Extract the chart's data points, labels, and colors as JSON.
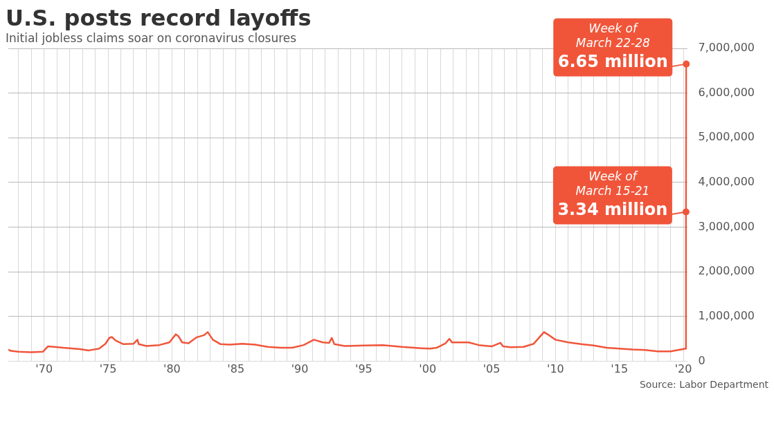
{
  "chart_data": {
    "type": "line",
    "title": "U.S. posts record layoffs",
    "subtitle": "Initial jobless claims soar on coronavirus closures",
    "annotations": [
      "Source: Labor Department",
      {
        "text": "Week of\nMarch 22-28\n6.65 million",
        "x": 2020.23,
        "y": 6650000
      },
      {
        "text": "Week of\nMarch 15-21\n3.34 million",
        "x": 2020.21,
        "y": 3340000
      }
    ],
    "series": [
      {
        "color": "#f0553a",
        "x": [
          1967.2,
          1967.4,
          1968,
          1969,
          1969.9,
          1970.3,
          1970.8,
          1971.5,
          1972,
          1972.8,
          1973.5,
          1974.3,
          1974.8,
          1975.1,
          1975.3,
          1975.6,
          1976.2,
          1977,
          1977.3,
          1977.4,
          1978,
          1979,
          1979.8,
          1980.3,
          1980.5,
          1980.8,
          1981.3,
          1981.9,
          1982.5,
          1982.8,
          1983.2,
          1983.8,
          1984.5,
          1985.5,
          1986.5,
          1987.5,
          1988.5,
          1989.4,
          1990.3,
          1991.1,
          1991.8,
          1992.3,
          1992.5,
          1992.7,
          1993.5,
          1995,
          1996.5,
          1998,
          1999.5,
          2000.2,
          2000.7,
          2001.4,
          2001.7,
          2001.9,
          2003.2,
          2004,
          2005,
          2005.7,
          2005.9,
          2006.5,
          2007.5,
          2008.3,
          2009.1,
          2009.5,
          2010,
          2011,
          2012,
          2013,
          2014,
          2015,
          2016,
          2017,
          2018,
          2019,
          2020.19,
          2020.21,
          2020.23
        ],
        "values": [
          260000,
          230000,
          210000,
          200000,
          210000,
          330000,
          320000,
          300000,
          290000,
          270000,
          240000,
          280000,
          390000,
          520000,
          540000,
          460000,
          380000,
          390000,
          480000,
          380000,
          340000,
          360000,
          420000,
          600000,
          560000,
          420000,
          400000,
          530000,
          580000,
          650000,
          480000,
          380000,
          370000,
          390000,
          370000,
          320000,
          300000,
          300000,
          360000,
          480000,
          420000,
          410000,
          520000,
          380000,
          340000,
          350000,
          360000,
          320000,
          290000,
          280000,
          300000,
          400000,
          500000,
          420000,
          420000,
          360000,
          330000,
          410000,
          330000,
          310000,
          320000,
          390000,
          650000,
          580000,
          480000,
          420000,
          380000,
          350000,
          300000,
          280000,
          260000,
          250000,
          220000,
          220000,
          280000,
          3340000,
          6650000
        ]
      }
    ],
    "xlim": [
      1967.2,
      2020.3
    ],
    "xticks": [
      {
        "value": 1968,
        "label": null
      },
      {
        "value": 1969,
        "label": null
      },
      {
        "value": 1970,
        "label": "'70"
      },
      {
        "value": 1971,
        "label": null
      },
      {
        "value": 1972,
        "label": null
      },
      {
        "value": 1973,
        "label": null
      },
      {
        "value": 1974,
        "label": null
      },
      {
        "value": 1975,
        "label": "'75"
      },
      {
        "value": 1976,
        "label": null
      },
      {
        "value": 1977,
        "label": null
      },
      {
        "value": 1978,
        "label": null
      },
      {
        "value": 1979,
        "label": null
      },
      {
        "value": 1980,
        "label": "'80"
      },
      {
        "value": 1981,
        "label": null
      },
      {
        "value": 1982,
        "label": null
      },
      {
        "value": 1983,
        "label": null
      },
      {
        "value": 1984,
        "label": null
      },
      {
        "value": 1985,
        "label": "'85"
      },
      {
        "value": 1986,
        "label": null
      },
      {
        "value": 1987,
        "label": null
      },
      {
        "value": 1988,
        "label": null
      },
      {
        "value": 1989,
        "label": null
      },
      {
        "value": 1990,
        "label": "'90"
      },
      {
        "value": 1991,
        "label": null
      },
      {
        "value": 1992,
        "label": null
      },
      {
        "value": 1993,
        "label": null
      },
      {
        "value": 1994,
        "label": null
      },
      {
        "value": 1995,
        "label": "'95"
      },
      {
        "value": 1996,
        "label": null
      },
      {
        "value": 1997,
        "label": null
      },
      {
        "value": 1998,
        "label": null
      },
      {
        "value": 1999,
        "label": null
      },
      {
        "value": 2000,
        "label": "'00"
      },
      {
        "value": 2001,
        "label": null
      },
      {
        "value": 2002,
        "label": null
      },
      {
        "value": 2003,
        "label": null
      },
      {
        "value": 2004,
        "label": null
      },
      {
        "value": 2005,
        "label": "'05"
      },
      {
        "value": 2006,
        "label": null
      },
      {
        "value": 2007,
        "label": null
      },
      {
        "value": 2008,
        "label": null
      },
      {
        "value": 2009,
        "label": null
      },
      {
        "value": 2010,
        "label": "'10"
      },
      {
        "value": 2011,
        "label": null
      },
      {
        "value": 2012,
        "label": null
      },
      {
        "value": 2013,
        "label": null
      },
      {
        "value": 2014,
        "label": null
      },
      {
        "value": 2015,
        "label": "'15"
      },
      {
        "value": 2016,
        "label": null
      },
      {
        "value": 2017,
        "label": null
      },
      {
        "value": 2018,
        "label": null
      },
      {
        "value": 2019,
        "label": null
      },
      {
        "value": 2020,
        "label": "'20"
      }
    ],
    "ylim": [
      0,
      7000000
    ],
    "yticks": [
      0,
      {
        "value": 1000000,
        "label": "1,000,000"
      },
      {
        "value": 2000000,
        "label": "2,000,000"
      },
      {
        "value": 3000000,
        "label": "3,000,000"
      },
      {
        "value": 4000000,
        "label": "4,000,000"
      },
      {
        "value": 5000000,
        "label": "5,000,000"
      },
      {
        "value": 6000000,
        "label": "6,000,000"
      },
      {
        "value": 7000000,
        "label": "7,000,000"
      }
    ],
    "grid": true,
    "legend": false,
    "marker": "none",
    "line_style": "solid"
  }
}
